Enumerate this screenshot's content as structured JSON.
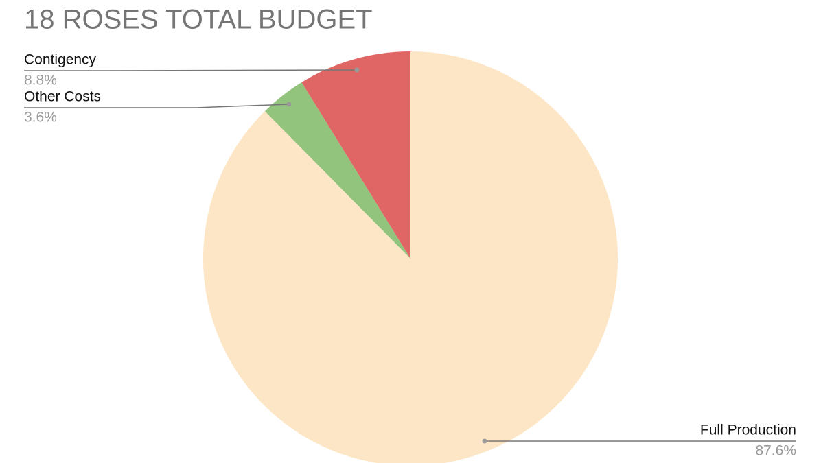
{
  "chart_data": {
    "type": "pie",
    "title": "18 ROSES TOTAL BUDGET",
    "categories": [
      "Full Production",
      "Other Costs",
      "Contigency"
    ],
    "values": [
      87.6,
      3.6,
      8.8
    ],
    "value_labels": [
      "87.6%",
      "3.6%",
      "8.8%"
    ],
    "colors": [
      "#fde6c5",
      "#93c47d",
      "#e06666"
    ]
  }
}
